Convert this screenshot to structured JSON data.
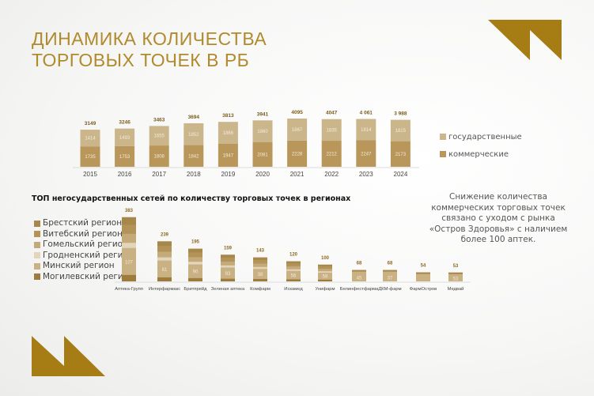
{
  "title": {
    "line1": "ДИНАМИКА КОЛИЧЕСТВА",
    "line2": "ТОРГОВЫХ ТОЧЕК В РБ"
  },
  "colors": {
    "accent": "#a67c14",
    "state": "#cbb68c",
    "commercial": "#b9975a",
    "title": "#b08a2c"
  },
  "chart_data": [
    {
      "type": "bar",
      "stacked": true,
      "title": "",
      "categories": [
        "2015",
        "2016",
        "2017",
        "2018",
        "2019",
        "2020",
        "2021",
        "2022",
        "2023",
        "2024"
      ],
      "totals": [
        "3149",
        "3246",
        "3463",
        "3694",
        "3813",
        "3941",
        "4095",
        "4047",
        "4 061",
        "3 988"
      ],
      "series": [
        {
          "name": "коммерческие",
          "color": "#b9975a",
          "values": [
            1735,
            1753,
            1808,
            1842,
            1947,
            2081,
            2228,
            2212,
            2247,
            2173
          ]
        },
        {
          "name": "государственные",
          "color": "#cbb68c",
          "values": [
            1414,
            1493,
            1655,
            1852,
            1866,
            1860,
            1867,
            1835,
            1814,
            1815
          ]
        }
      ],
      "legend_position": "right",
      "grid": false
    },
    {
      "type": "bar",
      "stacked": true,
      "title": "ТОП негосударственных сетей по количеству торговых точек в регионах",
      "categories": [
        "Аптека-Групп",
        "Интерфармакс",
        "Бритпрейд",
        "Зеленая аптека",
        "Комфарм",
        "Искамед",
        "Унифарм",
        "Белинфестфарма",
        "ДКМ-фарм",
        "ФармОстров",
        "Медвай"
      ],
      "totals": [
        383,
        239,
        195,
        159,
        143,
        120,
        100,
        68,
        68,
        54,
        53
      ],
      "minsk_labels": [
        "107",
        "81",
        "90",
        "93",
        "38",
        "56",
        "59",
        "45",
        "37",
        "",
        "53"
      ],
      "legend": [
        "Брестский регион",
        "Витебский регион",
        "Гомельский регион",
        "Гродненский регион",
        "Минский регион",
        "Могилевский регион"
      ],
      "legend_colors": [
        "#a8874a",
        "#b39458",
        "#c4aa78",
        "#e2d5bb",
        "#c9b184",
        "#9c7b3c"
      ],
      "legend_position": "left",
      "grid": false
    }
  ],
  "note": "Снижение количества коммерческих торговых точек связано с уходом с рынка «Остров Здоровья» с наличием более 100 аптек."
}
